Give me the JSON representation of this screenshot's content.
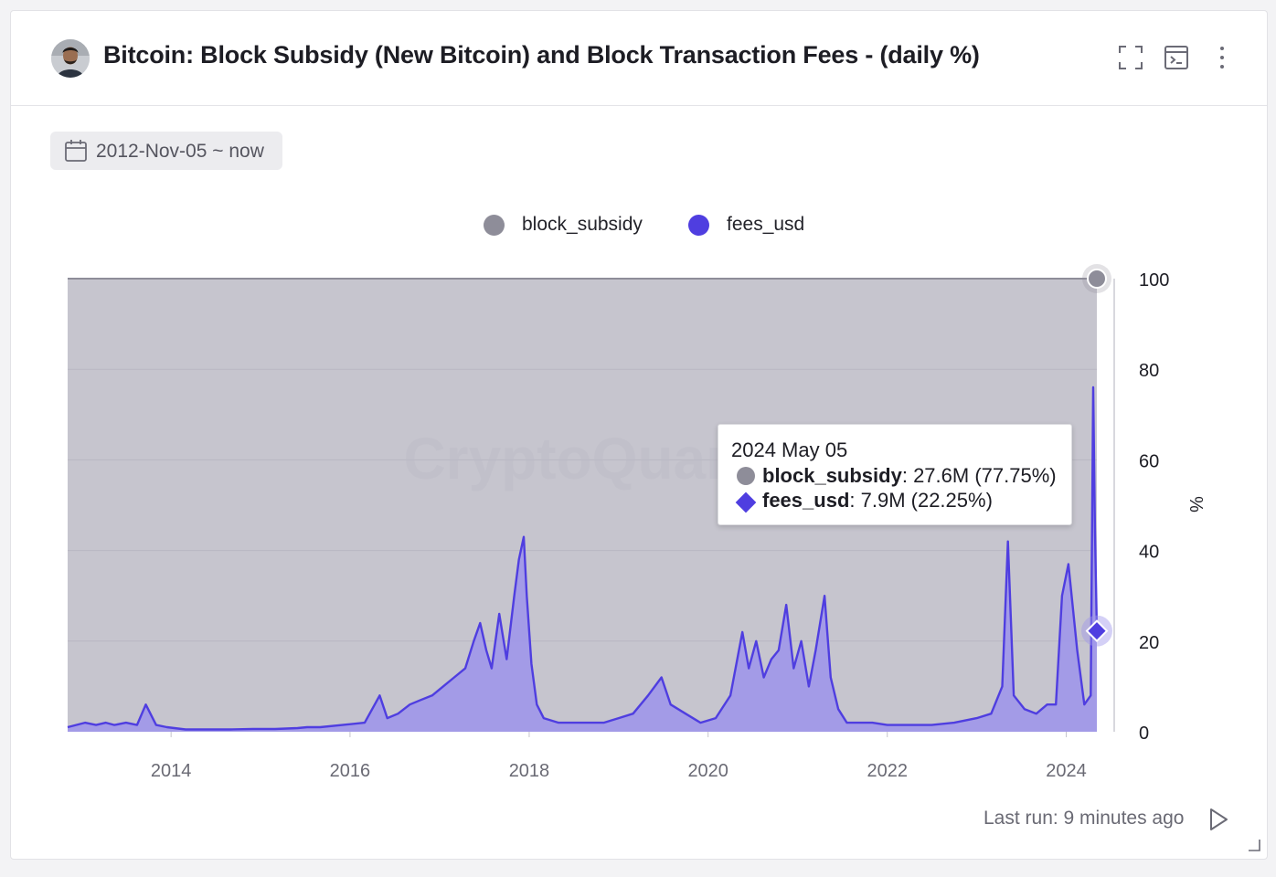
{
  "header": {
    "title": "Bitcoin: Block Subsidy (New Bitcoin) and Block Transaction Fees - (daily %)",
    "icons": [
      "avatar",
      "fullscreen-icon",
      "query-editor-icon",
      "more-vertical-icon"
    ]
  },
  "date_range": {
    "label": "2012-Nov-05 ~ now",
    "icon": "calendar-icon"
  },
  "tooltip": {
    "date": "2024 May 05",
    "rows": [
      {
        "name": "block_subsidy",
        "value": ": 27.6M (77.75%)",
        "color": "#8e8d99",
        "marker": "circle"
      },
      {
        "name": "fees_usd",
        "value": ": 7.9M (22.25%)",
        "color": "#4f3ee0",
        "marker": "diamond"
      }
    ]
  },
  "footer": {
    "last_run": "Last run: 9 minutes ago",
    "icon": "play-icon"
  },
  "watermark": "CryptoQuant",
  "chart_data": {
    "type": "area",
    "stacked": true,
    "normalized_percent": true,
    "title": "Bitcoin: Block Subsidy (New Bitcoin) and Block Transaction Fees - (daily %)",
    "xlabel": "",
    "ylabel": "%",
    "x_ticks": [
      "2014",
      "2016",
      "2018",
      "2020",
      "2022",
      "2024"
    ],
    "y_ticks": [
      0,
      20,
      40,
      60,
      80,
      100
    ],
    "ylim": [
      0,
      100
    ],
    "xlim": [
      "2012-11-05",
      "2024-05-05"
    ],
    "legend_position": "top-center",
    "grid": true,
    "series": [
      {
        "name": "block_subsidy",
        "color": "#8e8d99",
        "note": "complement of fees_usd (100 - fees_usd)"
      },
      {
        "name": "fees_usd",
        "color": "#4f3ee0",
        "x": [
          "2012-11-05",
          "2013-01-15",
          "2013-03-01",
          "2013-04-10",
          "2013-05-15",
          "2013-07-01",
          "2013-08-15",
          "2013-09-20",
          "2013-11-01",
          "2013-12-15",
          "2014-03-01",
          "2014-06-01",
          "2014-09-01",
          "2014-12-01",
          "2015-03-01",
          "2015-06-01",
          "2015-07-10",
          "2015-09-01",
          "2015-12-01",
          "2016-03-01",
          "2016-05-01",
          "2016-06-01",
          "2016-07-15",
          "2016-09-01",
          "2016-10-15",
          "2016-12-01",
          "2017-01-15",
          "2017-03-01",
          "2017-04-15",
          "2017-05-20",
          "2017-06-15",
          "2017-07-10",
          "2017-08-01",
          "2017-09-01",
          "2017-10-01",
          "2017-11-01",
          "2017-11-20",
          "2017-12-10",
          "2017-12-22",
          "2018-01-10",
          "2018-02-01",
          "2018-03-01",
          "2018-05-01",
          "2018-07-01",
          "2018-09-01",
          "2018-11-01",
          "2019-01-01",
          "2019-03-01",
          "2019-05-01",
          "2019-06-25",
          "2019-08-01",
          "2019-10-01",
          "2019-12-01",
          "2020-02-01",
          "2020-04-01",
          "2020-05-20",
          "2020-06-15",
          "2020-07-15",
          "2020-08-15",
          "2020-09-15",
          "2020-10-15",
          "2020-11-15",
          "2020-12-15",
          "2021-01-15",
          "2021-02-15",
          "2021-03-15",
          "2021-04-20",
          "2021-05-15",
          "2021-06-15",
          "2021-07-20",
          "2021-09-01",
          "2021-11-01",
          "2022-01-01",
          "2022-04-01",
          "2022-07-01",
          "2022-10-01",
          "2023-01-01",
          "2023-03-01",
          "2023-04-15",
          "2023-05-08",
          "2023-06-01",
          "2023-07-15",
          "2023-09-01",
          "2023-10-15",
          "2023-11-20",
          "2023-12-15",
          "2024-01-10",
          "2024-02-15",
          "2024-03-15",
          "2024-04-10",
          "2024-04-20",
          "2024-04-27",
          "2024-05-05"
        ],
        "values": [
          1,
          2,
          1.5,
          2,
          1.5,
          2,
          1.5,
          6,
          1.5,
          1,
          0.5,
          0.5,
          0.5,
          0.6,
          0.6,
          0.8,
          1,
          1,
          1.5,
          2,
          8,
          3,
          4,
          6,
          7,
          8,
          10,
          12,
          14,
          20,
          24,
          18,
          14,
          26,
          16,
          30,
          38,
          43,
          30,
          15,
          6,
          3,
          2,
          2,
          2,
          2,
          3,
          4,
          8,
          12,
          6,
          4,
          2,
          3,
          8,
          22,
          14,
          20,
          12,
          16,
          18,
          28,
          14,
          20,
          10,
          18,
          30,
          12,
          5,
          2,
          2,
          2,
          1.5,
          1.5,
          1.5,
          2,
          3,
          4,
          10,
          42,
          8,
          5,
          4,
          6,
          6,
          30,
          37,
          18,
          6,
          8,
          76,
          45,
          22.25
        ]
      }
    ]
  }
}
